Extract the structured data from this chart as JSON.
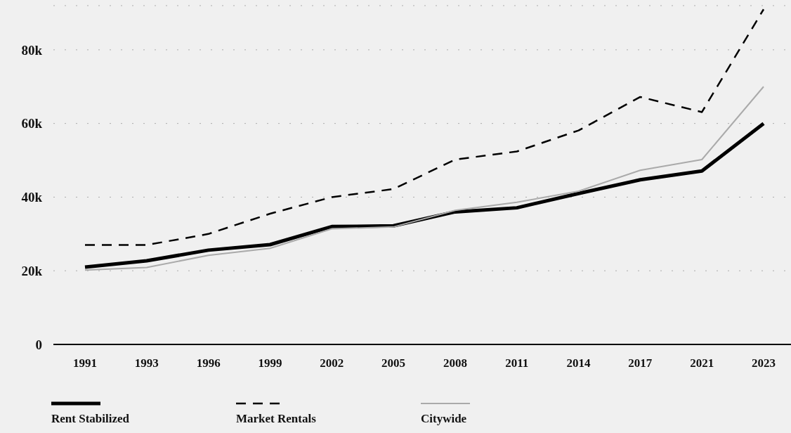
{
  "chart_data": {
    "type": "line",
    "categories": [
      "1991",
      "1993",
      "1996",
      "1999",
      "2002",
      "2005",
      "2008",
      "2011",
      "2014",
      "2017",
      "2021",
      "2023"
    ],
    "series": [
      {
        "name": "Rent Stabilized",
        "color": "#000000",
        "line_style": "solid",
        "values": [
          21000,
          22700,
          25600,
          27100,
          32000,
          32200,
          36000,
          37100,
          41000,
          44700,
          47100,
          60000
        ]
      },
      {
        "name": "Market Rentals",
        "color": "#000000",
        "line_style": "dashed",
        "values": [
          27000,
          27000,
          30000,
          35500,
          40000,
          42200,
          50200,
          52400,
          58100,
          67200,
          63100,
          91000
        ]
      },
      {
        "name": "Citywide",
        "color": "#aaaaaa",
        "line_style": "solid",
        "values": [
          20200,
          20900,
          24200,
          26100,
          31400,
          31900,
          36400,
          38600,
          41600,
          47300,
          50200,
          70000
        ]
      }
    ],
    "ylim": [
      0,
      92000
    ],
    "yticks": [
      {
        "value": 0,
        "label": "0"
      },
      {
        "value": 20000,
        "label": "20k"
      },
      {
        "value": 40000,
        "label": "40k"
      },
      {
        "value": 60000,
        "label": "60k"
      },
      {
        "value": 80000,
        "label": "80k"
      }
    ],
    "grid": "y",
    "legend": "bottom",
    "marker": "none"
  }
}
